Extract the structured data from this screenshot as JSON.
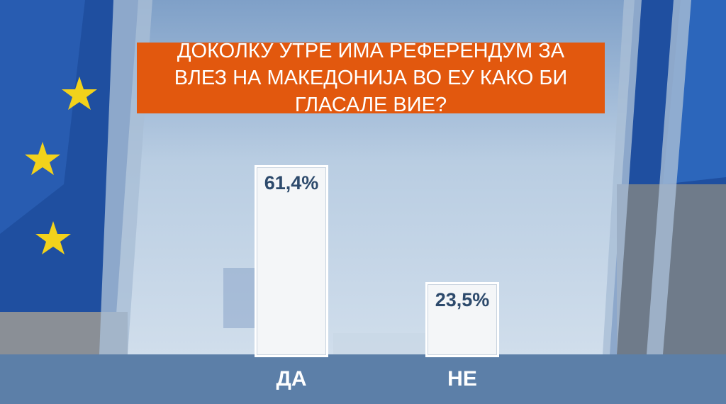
{
  "chart_data": {
    "type": "bar",
    "title": "ДОКОЛКУ УТРЕ ИМА РЕФЕРЕНДУМ ЗА ВЛЕЗ НА МАКЕДОНИЈА ВО ЕУ КАКО БИ ГЛАСАЛЕ ВИЕ?",
    "categories": [
      "ДА",
      "НЕ"
    ],
    "values": [
      61.4,
      23.5
    ],
    "value_labels": [
      "61,4%",
      "23,5%"
    ],
    "color": "#f4f6f8"
  }
}
